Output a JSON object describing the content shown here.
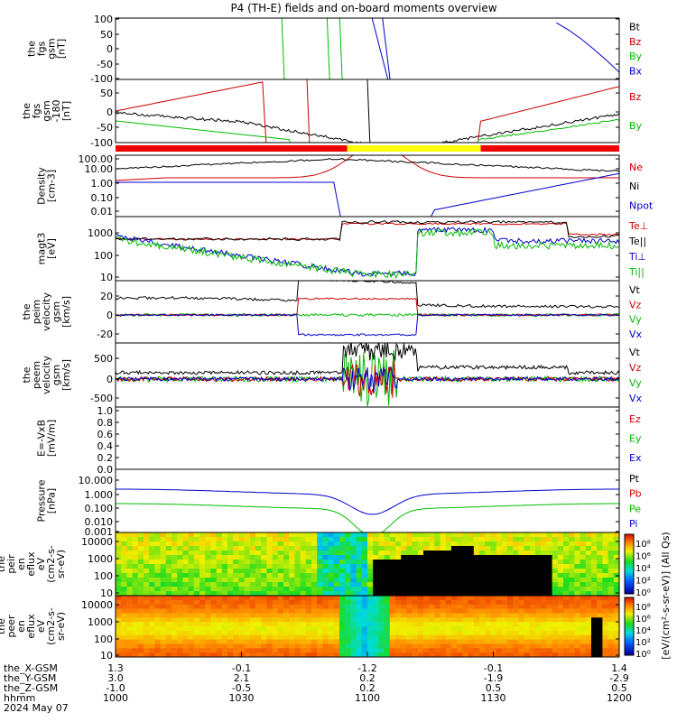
{
  "chart_data": {
    "type": "line",
    "title": "P4 (TH-E) fields and on-board moments overview",
    "panels": [
      {
        "id": "fgs",
        "ylabel": [
          "the",
          "fgs",
          "gsm",
          "[nT]"
        ],
        "ticks": [
          "100",
          "50",
          "0",
          "-50",
          "-100"
        ],
        "legend": [
          {
            "label": "Bt",
            "color": "#000000"
          },
          {
            "label": "Bz",
            "color": "#cc0000"
          },
          {
            "label": "By",
            "color": "#00bb00"
          },
          {
            "label": "Bx",
            "color": "#0000cc"
          }
        ]
      },
      {
        "id": "fgs-zoom",
        "ylabel": [
          "the",
          "fgs",
          "gsm",
          "-180",
          "[nT]"
        ],
        "ticks": [
          "50",
          "0",
          "-50",
          "-100"
        ],
        "legend": [
          {
            "label": "Bz",
            "color": "#cc0000"
          },
          {
            "label": "By",
            "color": "#00bb00"
          }
        ],
        "bar": [
          {
            "from": 0,
            "to": 0.92,
            "color": "#ee0000"
          },
          {
            "from": 0.92,
            "to": 1.45,
            "color": "#ffff00"
          },
          {
            "from": 1.45,
            "to": 2.0,
            "color": "#ee0000"
          }
        ]
      },
      {
        "id": "density",
        "ylabel": [
          "Density",
          "[cm-3]"
        ],
        "ticks": [
          "100.00",
          "10.00",
          "1.00",
          "0.10",
          "0.01"
        ],
        "log": true,
        "legend": [
          {
            "label": "Ne",
            "color": "#cc0000"
          },
          {
            "label": "Ni",
            "color": "#000000"
          },
          {
            "label": "Npot",
            "color": "#0000cc"
          }
        ]
      },
      {
        "id": "temperature",
        "ylabel": [
          "magt3",
          "[eV]"
        ],
        "ticks": [
          "1000",
          "100",
          "10"
        ],
        "log": true,
        "legend": [
          {
            "label": "Te⊥",
            "color": "#cc0000"
          },
          {
            "label": "Te||",
            "color": "#000000"
          },
          {
            "label": "Ti⊥",
            "color": "#0000cc"
          },
          {
            "label": "Ti||",
            "color": "#00bb00"
          }
        ]
      },
      {
        "id": "peim-velocity",
        "ylabel": [
          "the",
          "peim",
          "velocity",
          "gsm",
          "[km/s]"
        ],
        "ticks": [
          "20",
          "0",
          "-20"
        ],
        "legend": [
          {
            "label": "Vt",
            "color": "#000000"
          },
          {
            "label": "Vz",
            "color": "#cc0000"
          },
          {
            "label": "Vy",
            "color": "#00bb00"
          },
          {
            "label": "Vx",
            "color": "#0000cc"
          }
        ]
      },
      {
        "id": "peem-velocity",
        "ylabel": [
          "the",
          "peem",
          "velocity",
          "gsm",
          "[km/s]"
        ],
        "ticks": [
          "500",
          "0",
          "-500"
        ],
        "legend": [
          {
            "label": "Vt",
            "color": "#000000"
          },
          {
            "label": "Vz",
            "color": "#cc0000"
          },
          {
            "label": "Vy",
            "color": "#00bb00"
          },
          {
            "label": "Vx",
            "color": "#0000cc"
          }
        ]
      },
      {
        "id": "efield",
        "ylabel": [
          "E=-VxB",
          "[mV/m]"
        ],
        "ticks": [
          "1.0",
          "0.8",
          "0.6",
          "0.4",
          "0.2",
          "0.0"
        ],
        "legend": [
          {
            "label": "Ez",
            "color": "#cc0000"
          },
          {
            "label": "Ey",
            "color": "#00bb00"
          },
          {
            "label": "Ex",
            "color": "#0000cc"
          }
        ]
      },
      {
        "id": "pressure",
        "ylabel": [
          "Pressure",
          "[nPa]"
        ],
        "ticks": [
          "10.000",
          "1.000",
          "0.100",
          "0.010",
          "0.001"
        ],
        "log": true,
        "legend": [
          {
            "label": "Pt",
            "color": "#000000"
          },
          {
            "label": "Pb",
            "color": "#cc0000"
          },
          {
            "label": "Pe",
            "color": "#00bb00"
          },
          {
            "label": "Pi",
            "color": "#0000cc"
          }
        ]
      },
      {
        "id": "peir-spectrogram",
        "ylabel": [
          "the",
          "peir",
          "en",
          "eflux",
          "eV",
          "(cm2-s-",
          "sr-eV)"
        ],
        "ticks": [
          "10000",
          "1000",
          "100",
          "10"
        ]
      },
      {
        "id": "peer-spectrogram",
        "ylabel": [
          "the",
          "peer",
          "en",
          "eflux",
          "eV",
          "(cm2-s-",
          "sr-eV)"
        ],
        "ticks": [
          "10000",
          "1000",
          "100",
          "10"
        ]
      }
    ],
    "colorbar": {
      "ticks": [
        "10⁸",
        "10⁶",
        "10⁴",
        "10²",
        "10⁰"
      ],
      "label": "[eV/(cm²-s-sr-eV)] (All Qs)"
    },
    "xaxis": {
      "row_labels": [
        "the_X-GSM",
        "the_Y-GSM",
        "the_Z-GSM",
        "hhmm",
        "2024 May 07"
      ],
      "columns": [
        {
          "x": "1.3",
          "y": "3.0",
          "z": "-1.0",
          "t": "1000"
        },
        {
          "x": "-0.1",
          "y": "2.1",
          "z": "-0.5",
          "t": "1030"
        },
        {
          "x": "-1.2",
          "y": "0.2",
          "z": "0.2",
          "t": "1100"
        },
        {
          "x": "-0.1",
          "y": "-1.9",
          "z": "0.5",
          "t": "1130"
        },
        {
          "x": "1.4",
          "y": "-2.9",
          "z": "0.5",
          "t": "1200"
        }
      ]
    }
  }
}
